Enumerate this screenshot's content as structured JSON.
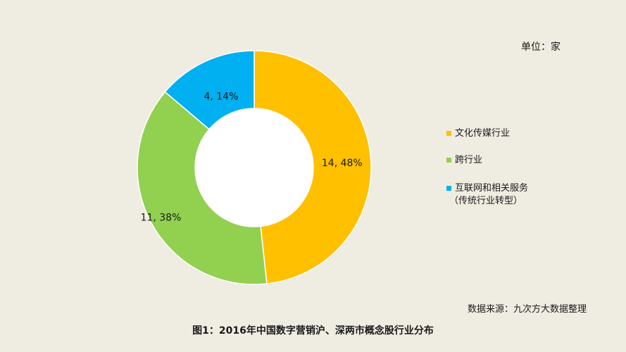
{
  "unit_label": "单位：家",
  "source_label": "数据来源：九次方大数据整理",
  "figure_title": "图1：2016年中国数字营销沪、深两市概念股行业分布",
  "chart_data": {
    "type": "pie",
    "variant": "donut",
    "categories": [
      "文化传媒行业",
      "跨行业",
      "互联网和相关服务"
    ],
    "values": [
      14,
      11,
      4
    ],
    "percents": [
      48,
      38,
      14
    ],
    "data_labels": [
      "14, 48%",
      "11, 38%",
      "4, 14%"
    ],
    "colors": [
      "#ffc000",
      "#92d050",
      "#00b0f0"
    ],
    "legend": {
      "placement": "right",
      "entries": [
        {
          "label": "文化传媒行业",
          "sub": ""
        },
        {
          "label": "跨行业",
          "sub": ""
        },
        {
          "label": "互联网和相关服务",
          "sub": "（传统行业转型）"
        }
      ]
    }
  }
}
